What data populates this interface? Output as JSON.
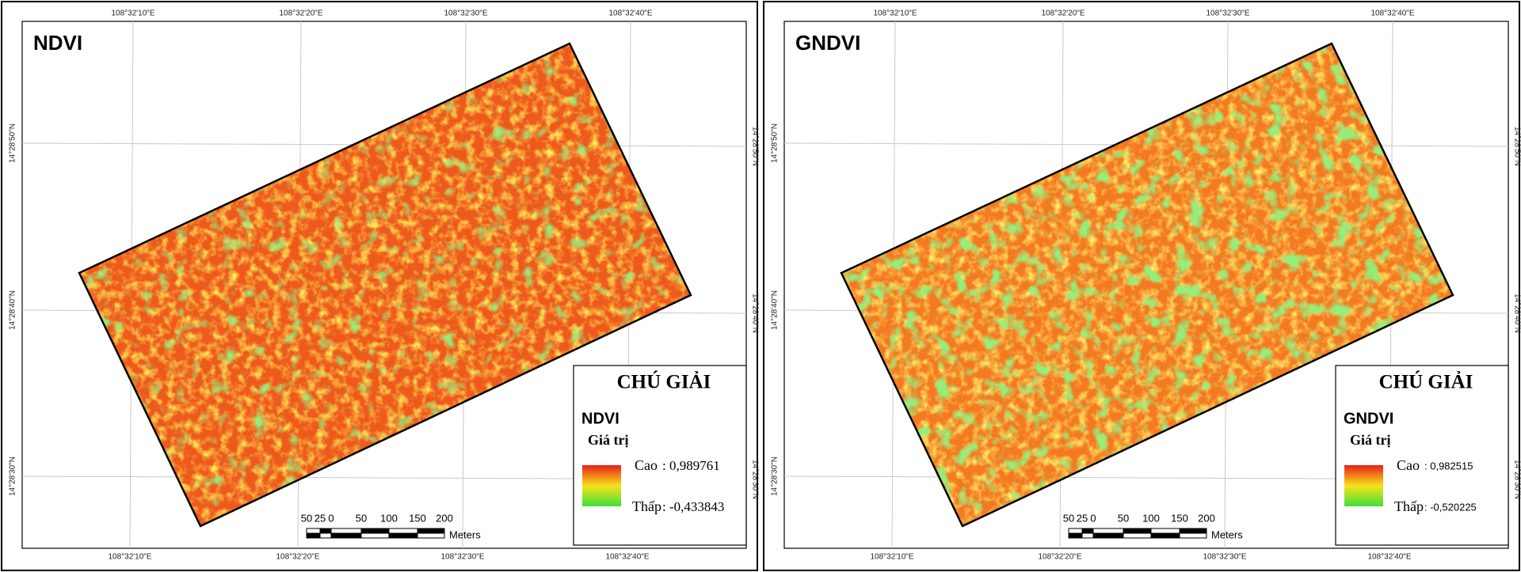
{
  "panels": [
    {
      "title": "NDVI",
      "top_labels": [
        "108°32'10\"E",
        "108°32'20\"E",
        "108°32'30\"E",
        "108°32'40\"E"
      ],
      "bottom_labels": [
        "108°32'10\"E",
        "108°32'20\"E",
        "108°32'30\"E",
        "108°32'40\"E"
      ],
      "left_labels": [
        "14°28'50\"N",
        "14°28'40\"N",
        "14°28'30\"N"
      ],
      "right_labels": [
        "14°28'50\"N",
        "14°28'40\"N",
        "14°28'30\"N"
      ],
      "scale_labels": [
        "50",
        "25",
        "0",
        "50",
        "100",
        "150",
        "200"
      ],
      "scale_unit": "Meters",
      "legend": {
        "heading": "CHÚ GIẢI",
        "layer": "NDVI",
        "field": "Giá trị",
        "high_label": "Cao",
        "high_value": ": 0,989761",
        "low_label": "Thấp",
        "low_value": ": -0,433843"
      }
    },
    {
      "title": "GNDVI",
      "top_labels": [
        "108°32'10\"E",
        "108°32'20\"E",
        "108°32'30\"E",
        "108°32'40\"E"
      ],
      "bottom_labels": [
        "108°32'10\"E",
        "108°32'20\"E",
        "108°32'30\"E",
        "108°32'40\"E"
      ],
      "left_labels": [
        "14°28'50\"N",
        "14°28'40\"N",
        "14°28'30\"N"
      ],
      "right_labels": [
        "14°28'50\"N",
        "14°28'40\"N",
        "14°28'30\"N"
      ],
      "scale_labels": [
        "50",
        "25",
        "0",
        "50",
        "100",
        "150",
        "200"
      ],
      "scale_unit": "Meters",
      "legend": {
        "heading": "CHÚ GIẢI",
        "layer": "GNDVI",
        "field": "Giá trị",
        "high_label": "Cao",
        "high_value": ": 0,982515",
        "low_label": "Thấp",
        "low_value": ": -0,520225"
      }
    }
  ]
}
